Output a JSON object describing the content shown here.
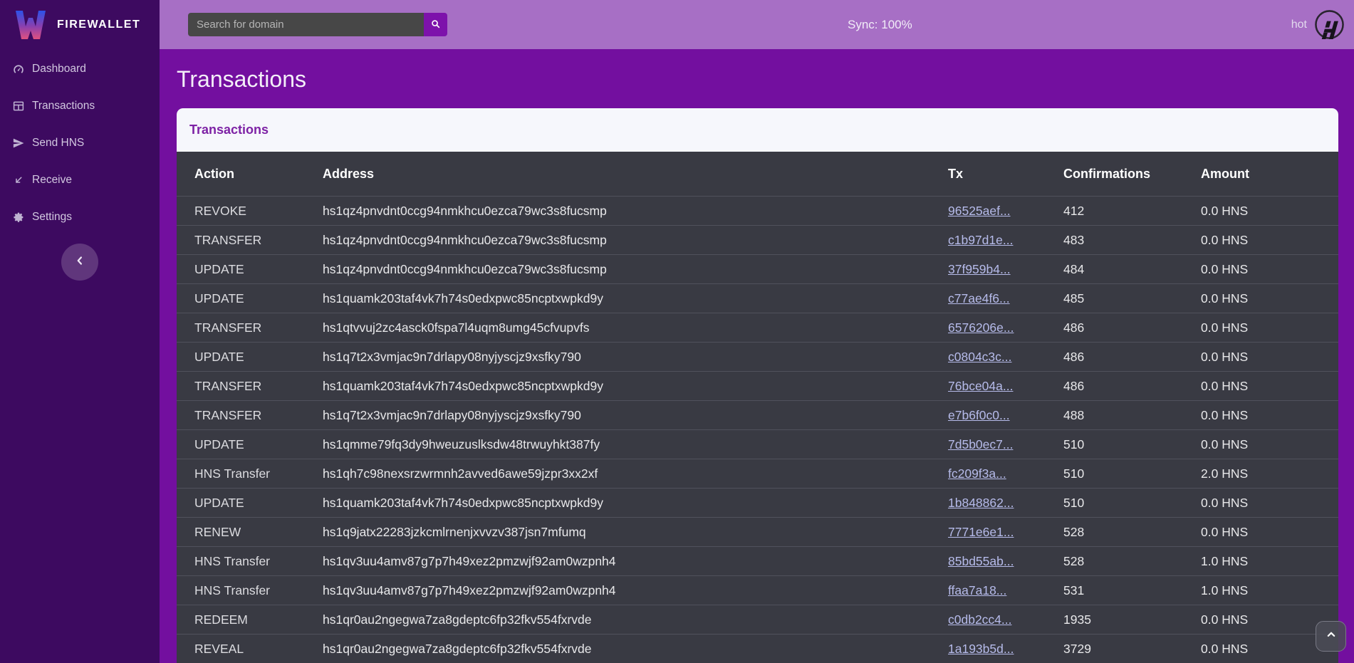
{
  "brand": {
    "name": "FIREWALLET",
    "logo_icon": "firewallet-w-icon"
  },
  "sidebar": {
    "items": [
      {
        "label": "Dashboard",
        "icon": "dashboard-icon"
      },
      {
        "label": "Transactions",
        "icon": "transactions-table-icon"
      },
      {
        "label": "Send HNS",
        "icon": "send-icon"
      },
      {
        "label": "Receive",
        "icon": "receive-arrow-icon"
      },
      {
        "label": "Settings",
        "icon": "gear-icon"
      }
    ],
    "collapse_icon": "chevron-left-icon"
  },
  "topbar": {
    "search_placeholder": "Search for domain",
    "search_icon": "search-icon",
    "sync_status": "Sync: 100%",
    "wallet_name": "hot",
    "wallet_icon": "handshake-logo-icon"
  },
  "page": {
    "title": "Transactions"
  },
  "card": {
    "title": "Transactions"
  },
  "table": {
    "columns": [
      "Action",
      "Address",
      "Tx",
      "Confirmations",
      "Amount"
    ],
    "rows": [
      {
        "action": "REVOKE",
        "address": "hs1qz4pnvdnt0ccg94nmkhcu0ezca79wc3s8fucsmp",
        "tx": "96525aef...",
        "confirmations": "412",
        "amount": "0.0 HNS"
      },
      {
        "action": "TRANSFER",
        "address": "hs1qz4pnvdnt0ccg94nmkhcu0ezca79wc3s8fucsmp",
        "tx": "c1b97d1e...",
        "confirmations": "483",
        "amount": "0.0 HNS"
      },
      {
        "action": "UPDATE",
        "address": "hs1qz4pnvdnt0ccg94nmkhcu0ezca79wc3s8fucsmp",
        "tx": "37f959b4...",
        "confirmations": "484",
        "amount": "0.0 HNS"
      },
      {
        "action": "UPDATE",
        "address": "hs1quamk203taf4vk7h74s0edxpwc85ncptxwpkd9y",
        "tx": "c77ae4f6...",
        "confirmations": "485",
        "amount": "0.0 HNS"
      },
      {
        "action": "TRANSFER",
        "address": "hs1qtvvuj2zc4asck0fspa7l4uqm8umg45cfvupvfs",
        "tx": "6576206e...",
        "confirmations": "486",
        "amount": "0.0 HNS"
      },
      {
        "action": "UPDATE",
        "address": "hs1q7t2x3vmjac9n7drlapy08nyjyscjz9xsfky790",
        "tx": "c0804c3c...",
        "confirmations": "486",
        "amount": "0.0 HNS"
      },
      {
        "action": "TRANSFER",
        "address": "hs1quamk203taf4vk7h74s0edxpwc85ncptxwpkd9y",
        "tx": "76bce04a...",
        "confirmations": "486",
        "amount": "0.0 HNS"
      },
      {
        "action": "TRANSFER",
        "address": "hs1q7t2x3vmjac9n7drlapy08nyjyscjz9xsfky790",
        "tx": "e7b6f0c0...",
        "confirmations": "488",
        "amount": "0.0 HNS"
      },
      {
        "action": "UPDATE",
        "address": "hs1qmme79fq3dy9hweuzuslksdw48trwuyhkt387fy",
        "tx": "7d5b0ec7...",
        "confirmations": "510",
        "amount": "0.0 HNS"
      },
      {
        "action": "HNS Transfer",
        "address": "hs1qh7c98nexsrzwrmnh2avved6awe59jzpr3xx2xf",
        "tx": "fc209f3a...",
        "confirmations": "510",
        "amount": "2.0 HNS"
      },
      {
        "action": "UPDATE",
        "address": "hs1quamk203taf4vk7h74s0edxpwc85ncptxwpkd9y",
        "tx": "1b848862...",
        "confirmations": "510",
        "amount": "0.0 HNS"
      },
      {
        "action": "RENEW",
        "address": "hs1q9jatx22283jzkcmlrnenjxvvzv387jsn7mfumq",
        "tx": "7771e6e1...",
        "confirmations": "528",
        "amount": "0.0 HNS"
      },
      {
        "action": "HNS Transfer",
        "address": "hs1qv3uu4amv87g7p7h49xez2pmzwjf92am0wzpnh4",
        "tx": "85bd55ab...",
        "confirmations": "528",
        "amount": "1.0 HNS"
      },
      {
        "action": "HNS Transfer",
        "address": "hs1qv3uu4amv87g7p7h49xez2pmzwjf92am0wzpnh4",
        "tx": "ffaa7a18...",
        "confirmations": "531",
        "amount": "1.0 HNS"
      },
      {
        "action": "REDEEM",
        "address": "hs1qr0au2ngegwa7za8gdeptc6fp32fkv554fxrvde",
        "tx": "c0db2cc4...",
        "confirmations": "1935",
        "amount": "0.0 HNS"
      },
      {
        "action": "REVEAL",
        "address": "hs1qr0au2ngegwa7za8gdeptc6fp32fkv554fxrvde",
        "tx": "1a193b5d...",
        "confirmations": "3729",
        "amount": "0.0 HNS"
      }
    ]
  },
  "colors": {
    "sidebar_bg": "#3d0a60",
    "topbar_bg": "#a76fc5",
    "main_bg": "#730f9f",
    "card_header_bg": "#f6f7fc",
    "card_title_text": "#7d22a5",
    "table_bg": "#393a43",
    "row_separator": "#50515c",
    "tx_link": "#b6bbea",
    "search_button_bg": "#7d12ab"
  }
}
